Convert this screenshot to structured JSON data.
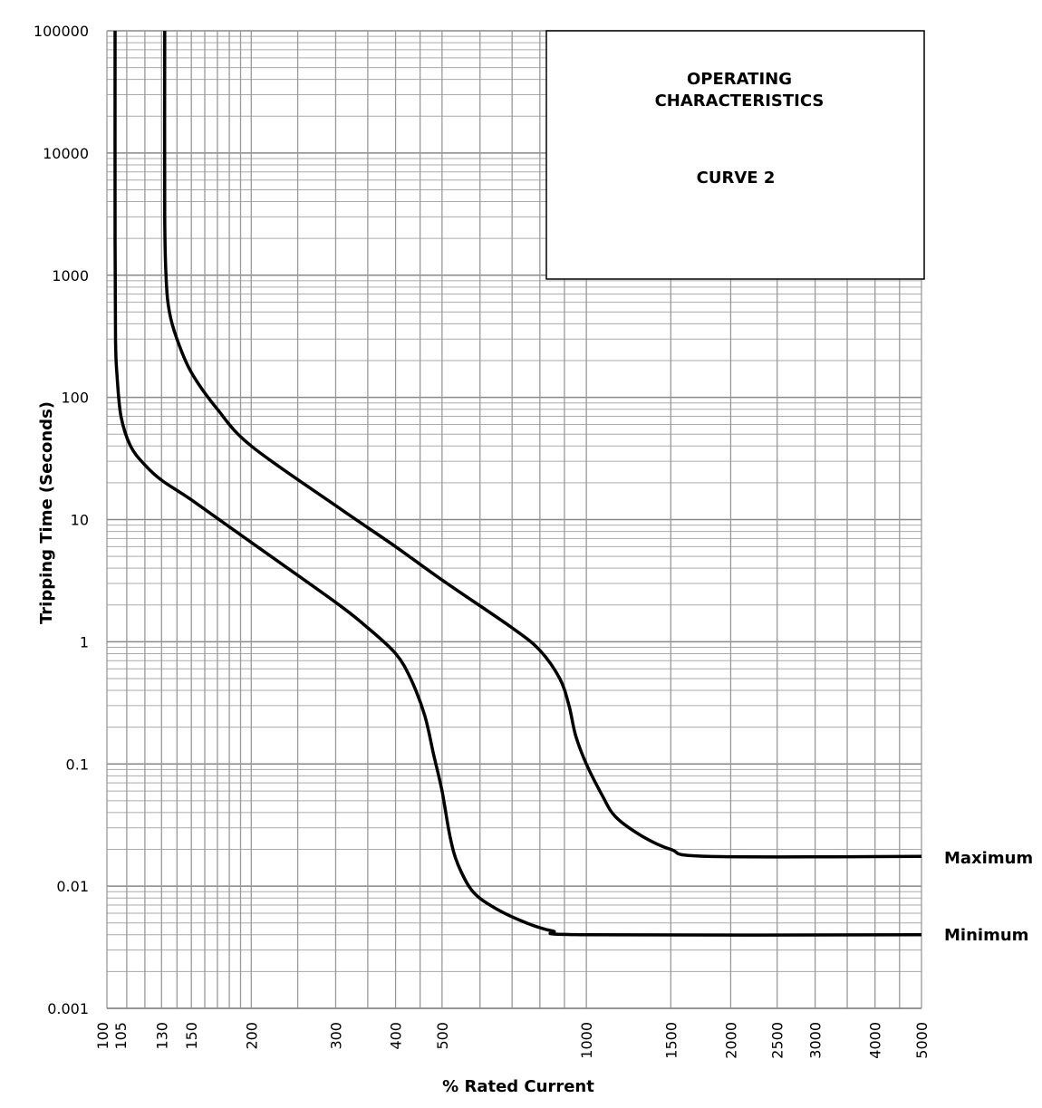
{
  "chart_data": {
    "type": "line",
    "title_lines": [
      "OPERATING",
      "CHARACTERISTICS"
    ],
    "subtitle": "CURVE 2",
    "xlabel": "% Rated Current",
    "ylabel": "Tripping Time (Seconds)",
    "x_scale": "log",
    "y_scale": "log",
    "xlim": [
      100,
      5000
    ],
    "ylim": [
      0.001,
      100000
    ],
    "grid": true,
    "x_ticks": [
      {
        "value": 100,
        "label": "100"
      },
      {
        "value": 105,
        "label": "105"
      },
      {
        "value": 130,
        "label": "130"
      },
      {
        "value": 150,
        "label": "150"
      },
      {
        "value": 200,
        "label": "200"
      },
      {
        "value": 300,
        "label": "300"
      },
      {
        "value": 400,
        "label": "400"
      },
      {
        "value": 500,
        "label": "500"
      },
      {
        "value": 1000,
        "label": "1000"
      },
      {
        "value": 1500,
        "label": "1500"
      },
      {
        "value": 2000,
        "label": "2000"
      },
      {
        "value": 2500,
        "label": "2500"
      },
      {
        "value": 3000,
        "label": "3000"
      },
      {
        "value": 4000,
        "label": "4000"
      },
      {
        "value": 5000,
        "label": "5000"
      }
    ],
    "y_ticks": [
      {
        "value": 100000,
        "label": "100000"
      },
      {
        "value": 10000,
        "label": "10000"
      },
      {
        "value": 1000,
        "label": "1000"
      },
      {
        "value": 100,
        "label": "100"
      },
      {
        "value": 10,
        "label": "10"
      },
      {
        "value": 1,
        "label": "1"
      },
      {
        "value": 0.1,
        "label": "0.1"
      },
      {
        "value": 0.01,
        "label": "0.01"
      },
      {
        "value": 0.001,
        "label": "0.001"
      }
    ],
    "series": [
      {
        "name": "Minimum",
        "points": [
          [
            104,
            100000
          ],
          [
            104,
            2000
          ],
          [
            104.2,
            300
          ],
          [
            105,
            150
          ],
          [
            107,
            70
          ],
          [
            112,
            40
          ],
          [
            120,
            28
          ],
          [
            130,
            21
          ],
          [
            150,
            14.5
          ],
          [
            200,
            6.5
          ],
          [
            300,
            2.1
          ],
          [
            350,
            1.3
          ],
          [
            400,
            0.8
          ],
          [
            430,
            0.5
          ],
          [
            460,
            0.25
          ],
          [
            480,
            0.12
          ],
          [
            500,
            0.06
          ],
          [
            520,
            0.025
          ],
          [
            540,
            0.015
          ],
          [
            580,
            0.009
          ],
          [
            650,
            0.0065
          ],
          [
            750,
            0.005
          ],
          [
            850,
            0.0043
          ],
          [
            1000,
            0.004
          ],
          [
            5000,
            0.004
          ]
        ]
      },
      {
        "name": "Maximum",
        "points": [
          [
            132,
            100000
          ],
          [
            132,
            3000
          ],
          [
            133,
            900
          ],
          [
            135,
            500
          ],
          [
            140,
            300
          ],
          [
            150,
            160
          ],
          [
            170,
            80
          ],
          [
            200,
            40
          ],
          [
            300,
            13
          ],
          [
            400,
            6
          ],
          [
            500,
            3.2
          ],
          [
            700,
            1.3
          ],
          [
            800,
            0.85
          ],
          [
            880,
            0.5
          ],
          [
            920,
            0.3
          ],
          [
            950,
            0.17
          ],
          [
            1000,
            0.1
          ],
          [
            1080,
            0.055
          ],
          [
            1150,
            0.037
          ],
          [
            1300,
            0.026
          ],
          [
            1500,
            0.02
          ],
          [
            1800,
            0.0175
          ],
          [
            5000,
            0.0175
          ]
        ]
      }
    ]
  }
}
